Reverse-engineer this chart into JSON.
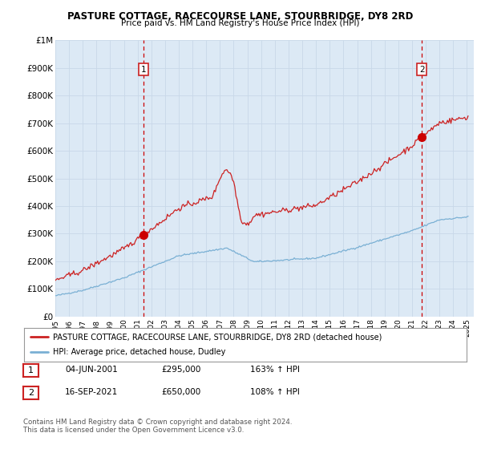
{
  "title": "PASTURE COTTAGE, RACECOURSE LANE, STOURBRIDGE, DY8 2RD",
  "subtitle": "Price paid vs. HM Land Registry's House Price Index (HPI)",
  "plot_bg_color": "#dce9f5",
  "ylim": [
    0,
    1000000
  ],
  "yticks": [
    0,
    100000,
    200000,
    300000,
    400000,
    500000,
    600000,
    700000,
    800000,
    900000,
    1000000
  ],
  "ytick_labels": [
    "£0",
    "£100K",
    "£200K",
    "£300K",
    "£400K",
    "£500K",
    "£600K",
    "£700K",
    "£800K",
    "£900K",
    "£1M"
  ],
  "sale1_date": 2001.42,
  "sale1_price": 295000,
  "sale2_date": 2021.71,
  "sale2_price": 650000,
  "vline_color": "#cc0000",
  "marker_color": "#cc0000",
  "red_line_color": "#cc2222",
  "blue_line_color": "#7ab0d4",
  "legend1_label": "PASTURE COTTAGE, RACECOURSE LANE, STOURBRIDGE, DY8 2RD (detached house)",
  "legend2_label": "HPI: Average price, detached house, Dudley",
  "table_row1": [
    "1",
    "04-JUN-2001",
    "£295,000",
    "163% ↑ HPI"
  ],
  "table_row2": [
    "2",
    "16-SEP-2021",
    "£650,000",
    "108% ↑ HPI"
  ],
  "footnote1": "Contains HM Land Registry data © Crown copyright and database right 2024.",
  "footnote2": "This data is licensed under the Open Government Licence v3.0.",
  "xmin": 1995.0,
  "xmax": 2025.5,
  "box_color": "#cc2222"
}
